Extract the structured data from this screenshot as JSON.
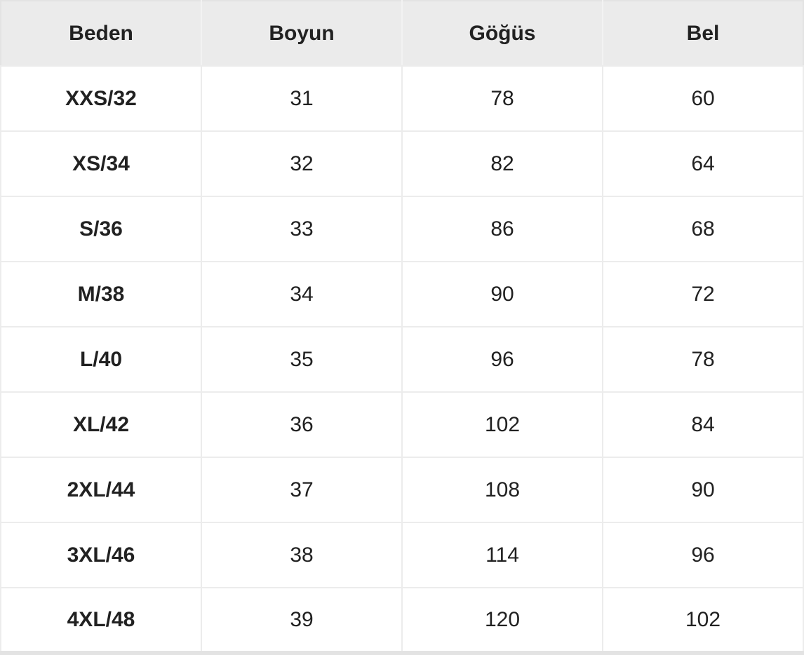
{
  "table": {
    "columns": [
      "Beden",
      "Boyun",
      "Göğüs",
      "Bel"
    ],
    "rows": [
      [
        "XXS/32",
        "31",
        "78",
        "60"
      ],
      [
        "XS/34",
        "32",
        "82",
        "64"
      ],
      [
        "S/36",
        "33",
        "86",
        "68"
      ],
      [
        "M/38",
        "34",
        "90",
        "72"
      ],
      [
        "L/40",
        "35",
        "96",
        "78"
      ],
      [
        "XL/42",
        "36",
        "102",
        "84"
      ],
      [
        "2XL/44",
        "37",
        "108",
        "90"
      ],
      [
        "3XL/46",
        "38",
        "114",
        "96"
      ],
      [
        "4XL/48",
        "39",
        "120",
        "102"
      ]
    ]
  },
  "colors": {
    "header_background": "#ebebeb",
    "body_background": "#ffffff",
    "divider": "#ececec",
    "bottom_border": "#e3e3e3",
    "text": "#212121"
  },
  "chart_data": {
    "type": "table",
    "columns": [
      "Beden",
      "Boyun",
      "Göğüs",
      "Bel"
    ],
    "rows": [
      [
        "XXS/32",
        31,
        78,
        60
      ],
      [
        "XS/34",
        32,
        82,
        64
      ],
      [
        "S/36",
        33,
        86,
        68
      ],
      [
        "M/38",
        34,
        90,
        72
      ],
      [
        "L/40",
        35,
        96,
        78
      ],
      [
        "XL/42",
        36,
        102,
        84
      ],
      [
        "2XL/44",
        37,
        108,
        90
      ],
      [
        "3XL/46",
        38,
        114,
        96
      ],
      [
        "4XL/48",
        39,
        120,
        102
      ]
    ],
    "layout": {
      "header_row": true,
      "grid": true,
      "columns_equal_width": true
    }
  }
}
